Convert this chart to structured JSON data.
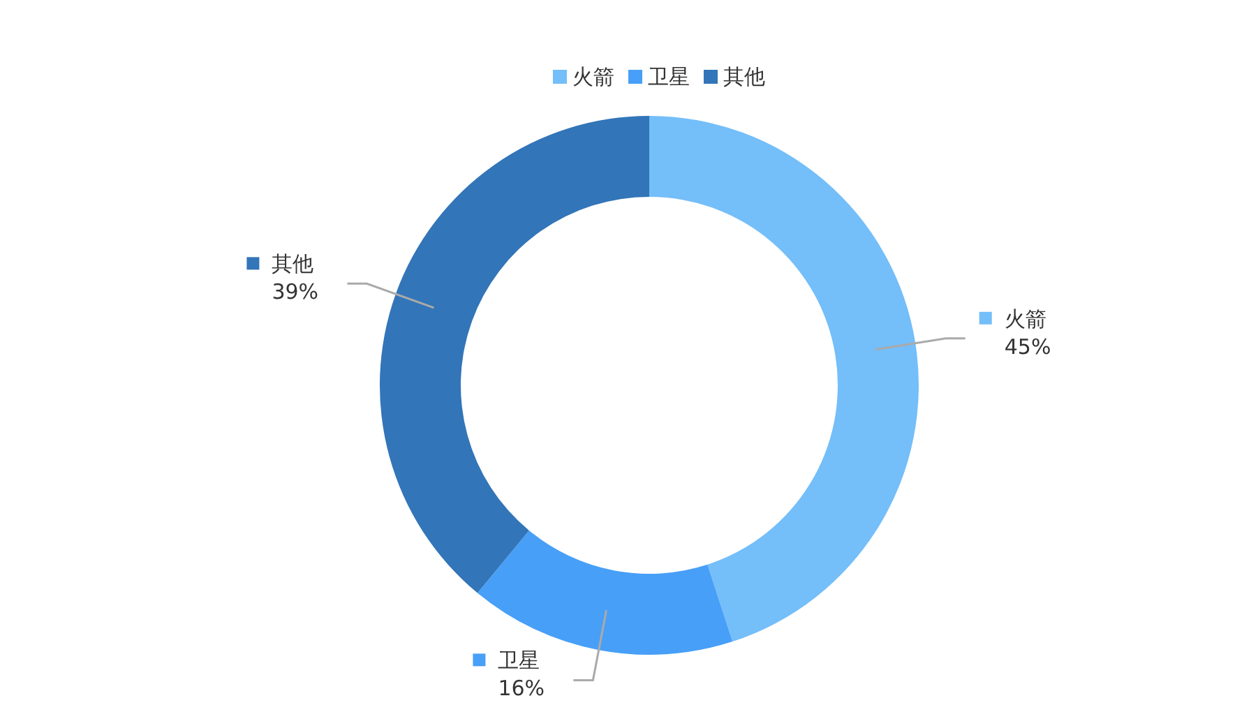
{
  "chart_data": {
    "type": "donut",
    "categories": [
      "火箭",
      "卫星",
      "其他"
    ],
    "values": [
      45,
      16,
      39
    ],
    "colors": [
      "#74bef9",
      "#479ff8",
      "#3275b8"
    ],
    "legend": "top",
    "value_labels": [
      "45%",
      "16%",
      "39%"
    ]
  }
}
